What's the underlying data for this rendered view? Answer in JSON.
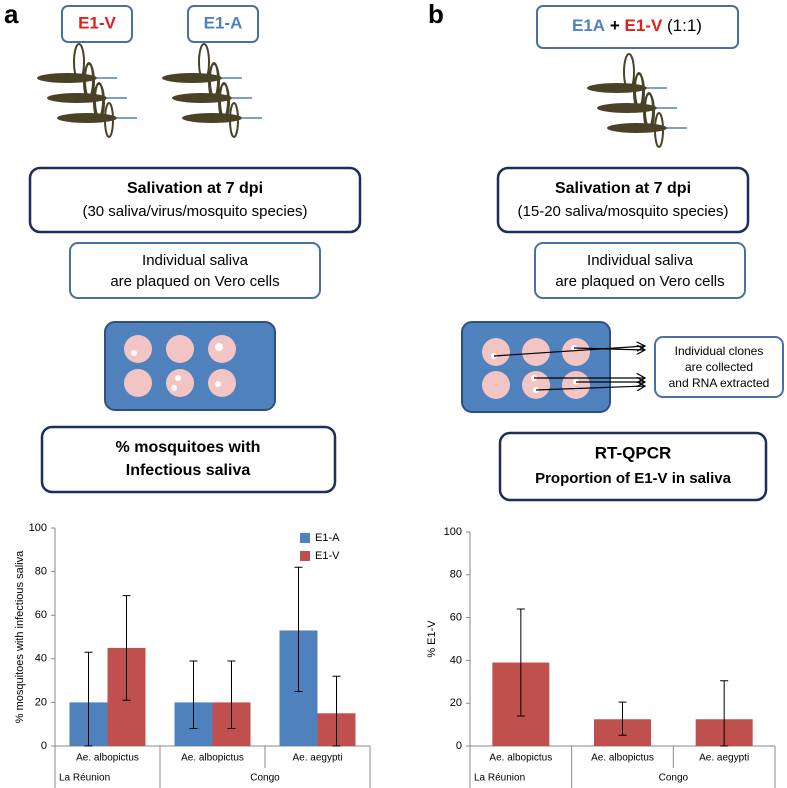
{
  "panel_labels": [
    "a",
    "b"
  ],
  "diagram_a": {
    "strains": [
      "E1-V",
      "E1-A"
    ],
    "salivation": {
      "title": "Salivation at 7 dpi",
      "detail": "(30 saliva/virus/mosquito species)"
    },
    "plaque": [
      "Individual saliva",
      "are plaqued on Vero cells"
    ],
    "readout": [
      "% mosquitoes with",
      "Infectious saliva"
    ]
  },
  "diagram_b": {
    "mix": [
      "E1A",
      "+",
      "E1-V",
      "(1:1)"
    ],
    "salivation": {
      "title": "Salivation at 7 dpi",
      "detail": "(15-20 saliva/mosquito species)"
    },
    "plaque": [
      "Individual saliva",
      "are plaqued on Vero cells"
    ],
    "clones": [
      "Individual clones",
      "are collected",
      "and RNA extracted"
    ],
    "readout": [
      "RT-QPCR",
      "Proportion of E1-V in saliva"
    ]
  },
  "chart_data": [
    {
      "type": "bar",
      "ylabel": "% mosquitoes with infectious saliva",
      "categories": [
        "Ae. albopictus",
        "Ae. albopictus",
        "Ae. aegypti"
      ],
      "x_groups": [
        {
          "label": "La Réunion",
          "span": 1
        },
        {
          "label": "Congo",
          "span": 2
        }
      ],
      "series": [
        {
          "name": "E1-A",
          "color": "#4f81bd",
          "values": [
            20,
            20,
            53
          ],
          "ci_low": [
            0,
            8,
            25
          ],
          "ci_high": [
            43,
            39,
            82
          ]
        },
        {
          "name": "E1-V",
          "color": "#c0504d",
          "values": [
            45,
            20,
            15
          ],
          "ci_low": [
            21,
            8,
            0
          ],
          "ci_high": [
            69,
            39,
            32
          ]
        }
      ],
      "ylim": [
        0,
        100
      ],
      "yticks": [
        0,
        20,
        40,
        60,
        80,
        100
      ],
      "legend": "top-right"
    },
    {
      "type": "bar",
      "ylabel": "% E1-V",
      "categories": [
        "Ae. albopictus",
        "Ae. albopictus",
        "Ae. aegypti"
      ],
      "x_groups": [
        {
          "label": "La Réunion",
          "span": 1
        },
        {
          "label": "Congo",
          "span": 2
        }
      ],
      "values": [
        39,
        12.5,
        12.5
      ],
      "ci_low": [
        14,
        5,
        0
      ],
      "ci_high": [
        64,
        20.5,
        30.5
      ],
      "color": "#c0504d",
      "ylim": [
        0,
        100
      ],
      "yticks": [
        0,
        20,
        40,
        60,
        80,
        100
      ]
    }
  ]
}
